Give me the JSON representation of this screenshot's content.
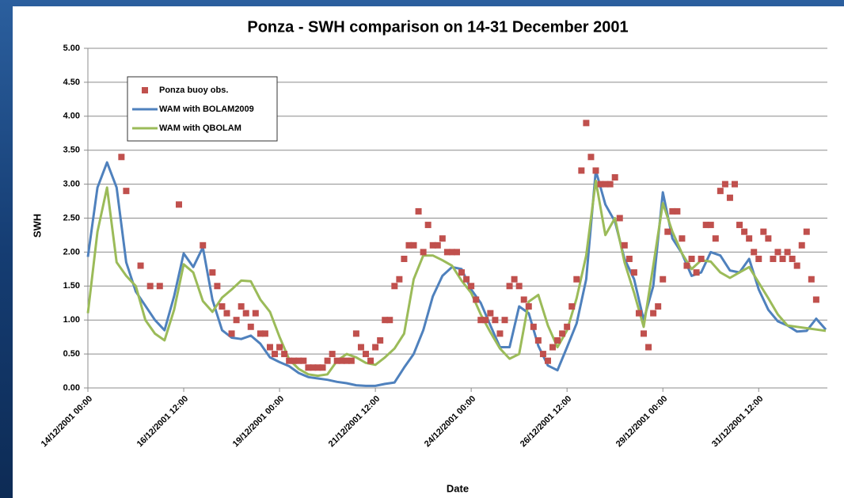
{
  "chart_data": {
    "type": "line",
    "title": "Ponza - SWH comparison on 14-31 December 2001",
    "x_label": "Date",
    "y_label": "SWH",
    "xlim": [
      "2001-12-14T00:00",
      "2002-01-02T07:00"
    ],
    "xticks": [
      {
        "value": "2001-12-14T00:00",
        "label": "14/12/2001 00:00"
      },
      {
        "value": "2001-12-16T12:00",
        "label": "16/12/2001 12:00"
      },
      {
        "value": "2001-12-19T00:00",
        "label": "19/12/2001 00:00"
      },
      {
        "value": "2001-12-21T12:00",
        "label": "21/12/2001 12:00"
      },
      {
        "value": "2001-12-24T00:00",
        "label": "24/12/2001 00:00"
      },
      {
        "value": "2001-12-26T12:00",
        "label": "26/12/2001 12:00"
      },
      {
        "value": "2001-12-29T00:00",
        "label": "29/12/2001 00:00"
      },
      {
        "value": "2001-12-31T12:00",
        "label": "31/12/2001 12:00"
      }
    ],
    "ylim": [
      0,
      5
    ],
    "yticks": [
      {
        "value": 0,
        "label": "0.00"
      },
      {
        "value": 0.5,
        "label": "0.50"
      },
      {
        "value": 1,
        "label": "1.00"
      },
      {
        "value": 1.5,
        "label": "1.50"
      },
      {
        "value": 2,
        "label": "2.00"
      },
      {
        "value": 2.5,
        "label": "2.50"
      },
      {
        "value": 3,
        "label": "3.00"
      },
      {
        "value": 3.5,
        "label": "3.50"
      },
      {
        "value": 4,
        "label": "4.00"
      },
      {
        "value": 4.5,
        "label": "4.50"
      },
      {
        "value": 5,
        "label": "5.00"
      }
    ],
    "grid": true,
    "legend": "upper left",
    "x": [
      "2001-12-14T00:00",
      "2001-12-14T06:00",
      "2001-12-14T12:00",
      "2001-12-14T18:00",
      "2001-12-15T00:00",
      "2001-12-15T06:00",
      "2001-12-15T12:00",
      "2001-12-15T18:00",
      "2001-12-16T00:00",
      "2001-12-16T06:00",
      "2001-12-16T12:00",
      "2001-12-16T18:00",
      "2001-12-17T00:00",
      "2001-12-17T06:00",
      "2001-12-17T12:00",
      "2001-12-17T18:00",
      "2001-12-18T00:00",
      "2001-12-18T06:00",
      "2001-12-18T12:00",
      "2001-12-18T18:00",
      "2001-12-19T00:00",
      "2001-12-19T06:00",
      "2001-12-19T12:00",
      "2001-12-19T18:00",
      "2001-12-20T00:00",
      "2001-12-20T06:00",
      "2001-12-20T12:00",
      "2001-12-20T18:00",
      "2001-12-21T00:00",
      "2001-12-21T06:00",
      "2001-12-21T12:00",
      "2001-12-21T18:00",
      "2001-12-22T00:00",
      "2001-12-22T06:00",
      "2001-12-22T12:00",
      "2001-12-22T18:00",
      "2001-12-23T00:00",
      "2001-12-23T06:00",
      "2001-12-23T12:00",
      "2001-12-23T18:00",
      "2001-12-24T00:00",
      "2001-12-24T06:00",
      "2001-12-24T12:00",
      "2001-12-24T18:00",
      "2001-12-25T00:00",
      "2001-12-25T06:00",
      "2001-12-25T12:00",
      "2001-12-25T18:00",
      "2001-12-26T00:00",
      "2001-12-26T06:00",
      "2001-12-26T12:00",
      "2001-12-26T18:00",
      "2001-12-27T00:00",
      "2001-12-27T06:00",
      "2001-12-27T12:00",
      "2001-12-27T18:00",
      "2001-12-28T00:00",
      "2001-12-28T06:00",
      "2001-12-28T12:00",
      "2001-12-28T18:00",
      "2001-12-29T00:00",
      "2001-12-29T06:00",
      "2001-12-29T12:00",
      "2001-12-29T18:00",
      "2001-12-30T00:00",
      "2001-12-30T06:00",
      "2001-12-30T12:00",
      "2001-12-30T18:00",
      "2001-12-31T00:00",
      "2001-12-31T06:00",
      "2001-12-31T12:00",
      "2001-12-31T18:00",
      "2002-01-01T00:00",
      "2002-01-01T06:00",
      "2002-01-01T12:00",
      "2002-01-01T18:00",
      "2002-01-02T00:00",
      "2002-01-02T06:00"
    ],
    "series": [
      {
        "name": "Ponza buoy obs.",
        "type": "scatter",
        "color": "#c0504d",
        "x": [
          "2001-12-14T21:00",
          "2001-12-15T00:00",
          "2001-12-15T09:00",
          "2001-12-15T15:00",
          "2001-12-15T21:00",
          "2001-12-16T09:00",
          "2001-12-17T00:00",
          "2001-12-17T06:00",
          "2001-12-17T09:00",
          "2001-12-17T12:00",
          "2001-12-17T15:00",
          "2001-12-17T18:00",
          "2001-12-17T21:00",
          "2001-12-18T00:00",
          "2001-12-18T03:00",
          "2001-12-18T06:00",
          "2001-12-18T09:00",
          "2001-12-18T12:00",
          "2001-12-18T15:00",
          "2001-12-18T18:00",
          "2001-12-18T21:00",
          "2001-12-19T00:00",
          "2001-12-19T03:00",
          "2001-12-19T06:00",
          "2001-12-19T09:00",
          "2001-12-19T12:00",
          "2001-12-19T15:00",
          "2001-12-19T18:00",
          "2001-12-19T21:00",
          "2001-12-20T00:00",
          "2001-12-20T03:00",
          "2001-12-20T06:00",
          "2001-12-20T09:00",
          "2001-12-20T12:00",
          "2001-12-20T15:00",
          "2001-12-20T18:00",
          "2001-12-20T21:00",
          "2001-12-21T00:00",
          "2001-12-21T03:00",
          "2001-12-21T06:00",
          "2001-12-21T09:00",
          "2001-12-21T12:00",
          "2001-12-21T15:00",
          "2001-12-21T18:00",
          "2001-12-21T21:00",
          "2001-12-22T00:00",
          "2001-12-22T03:00",
          "2001-12-22T06:00",
          "2001-12-22T09:00",
          "2001-12-22T12:00",
          "2001-12-22T15:00",
          "2001-12-22T18:00",
          "2001-12-22T21:00",
          "2001-12-23T00:00",
          "2001-12-23T03:00",
          "2001-12-23T06:00",
          "2001-12-23T09:00",
          "2001-12-23T12:00",
          "2001-12-23T15:00",
          "2001-12-23T18:00",
          "2001-12-23T21:00",
          "2001-12-24T00:00",
          "2001-12-24T03:00",
          "2001-12-24T06:00",
          "2001-12-24T09:00",
          "2001-12-24T12:00",
          "2001-12-24T15:00",
          "2001-12-24T18:00",
          "2001-12-24T21:00",
          "2001-12-25T00:00",
          "2001-12-25T03:00",
          "2001-12-25T06:00",
          "2001-12-25T09:00",
          "2001-12-25T12:00",
          "2001-12-25T15:00",
          "2001-12-25T18:00",
          "2001-12-25T21:00",
          "2001-12-26T00:00",
          "2001-12-26T03:00",
          "2001-12-26T06:00",
          "2001-12-26T09:00",
          "2001-12-26T12:00",
          "2001-12-26T15:00",
          "2001-12-26T18:00",
          "2001-12-26T21:00",
          "2001-12-27T00:00",
          "2001-12-27T03:00",
          "2001-12-27T06:00",
          "2001-12-27T09:00",
          "2001-12-27T12:00",
          "2001-12-27T15:00",
          "2001-12-27T18:00",
          "2001-12-27T21:00",
          "2001-12-28T00:00",
          "2001-12-28T03:00",
          "2001-12-28T06:00",
          "2001-12-28T09:00",
          "2001-12-28T12:00",
          "2001-12-28T15:00",
          "2001-12-28T18:00",
          "2001-12-28T21:00",
          "2001-12-29T00:00",
          "2001-12-29T03:00",
          "2001-12-29T06:00",
          "2001-12-29T09:00",
          "2001-12-29T12:00",
          "2001-12-29T15:00",
          "2001-12-29T18:00",
          "2001-12-29T21:00",
          "2001-12-30T00:00",
          "2001-12-30T03:00",
          "2001-12-30T06:00",
          "2001-12-30T09:00",
          "2001-12-30T12:00",
          "2001-12-30T15:00",
          "2001-12-30T18:00",
          "2001-12-30T21:00",
          "2001-12-31T00:00",
          "2001-12-31T03:00",
          "2001-12-31T06:00",
          "2001-12-31T09:00",
          "2001-12-31T12:00",
          "2001-12-31T15:00",
          "2001-12-31T18:00",
          "2001-12-31T21:00",
          "2002-01-01T00:00",
          "2002-01-01T03:00",
          "2002-01-01T06:00",
          "2002-01-01T09:00",
          "2002-01-01T12:00",
          "2002-01-01T15:00",
          "2002-01-01T18:00",
          "2002-01-01T21:00",
          "2002-01-02T00:00"
        ],
        "values": [
          3.4,
          2.9,
          1.8,
          1.5,
          1.5,
          2.7,
          2.1,
          1.7,
          1.5,
          1.2,
          1.1,
          0.8,
          1.0,
          1.2,
          1.1,
          0.9,
          1.1,
          0.8,
          0.8,
          0.6,
          0.5,
          0.6,
          0.5,
          0.4,
          0.4,
          0.4,
          0.4,
          0.3,
          0.3,
          0.3,
          0.3,
          0.4,
          0.5,
          0.4,
          0.4,
          0.4,
          0.4,
          0.8,
          0.6,
          0.5,
          0.4,
          0.6,
          0.7,
          1.0,
          1.0,
          1.5,
          1.6,
          1.9,
          2.1,
          2.1,
          2.6,
          2.0,
          2.4,
          2.1,
          2.1,
          2.2,
          2.0,
          2.0,
          2.0,
          1.7,
          1.6,
          1.5,
          1.3,
          1.0,
          1.0,
          1.1,
          1.0,
          0.8,
          1.0,
          1.5,
          1.6,
          1.5,
          1.3,
          1.2,
          0.9,
          0.7,
          0.5,
          0.4,
          0.6,
          0.7,
          0.8,
          0.9,
          1.2,
          1.6,
          3.2,
          3.9,
          3.4,
          3.2,
          3.0,
          3.0,
          3.0,
          3.1,
          2.5,
          2.1,
          1.9,
          1.7,
          1.1,
          0.8,
          0.6,
          1.1,
          1.2,
          1.6,
          2.3,
          2.6,
          2.6,
          2.2,
          1.8,
          1.9,
          1.7,
          1.9,
          2.4,
          2.4,
          2.2,
          2.9,
          3.0,
          2.8,
          3.0,
          2.4,
          2.3,
          2.2,
          2.0,
          1.9,
          2.3,
          2.2,
          1.9,
          2.0,
          1.9,
          2.0,
          1.9,
          1.8,
          2.1,
          2.3,
          1.6,
          1.3
        ]
      },
      {
        "name": "WAM with BOLAM2009",
        "type": "line",
        "color": "#4f81bd",
        "values": [
          1.93,
          2.95,
          3.32,
          2.95,
          1.85,
          1.42,
          1.21,
          1.0,
          0.85,
          1.35,
          1.98,
          1.78,
          2.07,
          1.3,
          0.85,
          0.74,
          0.72,
          0.77,
          0.65,
          0.45,
          0.38,
          0.32,
          0.22,
          0.16,
          0.14,
          0.12,
          0.09,
          0.07,
          0.04,
          0.03,
          0.03,
          0.06,
          0.08,
          0.3,
          0.5,
          0.85,
          1.35,
          1.65,
          1.78,
          1.75,
          1.45,
          1.25,
          0.92,
          0.6,
          0.6,
          1.2,
          1.1,
          0.62,
          0.33,
          0.26,
          0.6,
          0.95,
          1.6,
          3.2,
          2.7,
          2.45,
          1.9,
          1.6,
          1.0,
          1.5,
          2.88,
          2.2,
          1.98,
          1.65,
          1.7,
          2.0,
          1.95,
          1.73,
          1.7,
          1.9,
          1.45,
          1.15,
          0.98,
          0.92,
          0.83,
          0.84,
          1.02,
          0.86
        ]
      },
      {
        "name": "WAM with QBOLAM",
        "type": "line",
        "color": "#9bbb59",
        "values": [
          1.1,
          2.3,
          2.95,
          1.85,
          1.65,
          1.5,
          1.0,
          0.8,
          0.7,
          1.15,
          1.82,
          1.7,
          1.28,
          1.12,
          1.33,
          1.45,
          1.58,
          1.57,
          1.3,
          1.12,
          0.75,
          0.42,
          0.28,
          0.2,
          0.18,
          0.2,
          0.4,
          0.5,
          0.45,
          0.37,
          0.34,
          0.45,
          0.58,
          0.8,
          1.6,
          1.95,
          1.95,
          1.88,
          1.8,
          1.58,
          1.4,
          1.08,
          0.82,
          0.58,
          0.43,
          0.5,
          1.27,
          1.37,
          0.92,
          0.6,
          0.85,
          1.32,
          1.95,
          3.05,
          2.25,
          2.5,
          1.85,
          1.4,
          0.9,
          1.8,
          2.72,
          2.3,
          1.98,
          1.75,
          1.88,
          1.86,
          1.7,
          1.62,
          1.7,
          1.78,
          1.55,
          1.32,
          1.08,
          0.92,
          0.9,
          0.88,
          0.86,
          0.84
        ]
      }
    ]
  }
}
